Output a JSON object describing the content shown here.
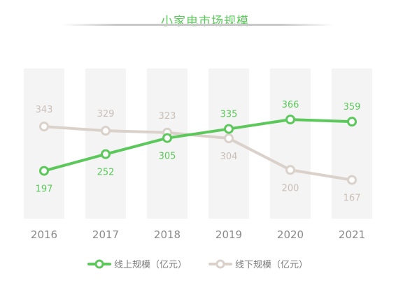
{
  "chart_data": {
    "type": "line",
    "title": "小家电市场规模",
    "categories": [
      "2016",
      "2017",
      "2018",
      "2019",
      "2020",
      "2021"
    ],
    "ylim": [
      150,
      380
    ],
    "series": [
      {
        "name": "线上规模（亿元）",
        "values": [
          197,
          252,
          305,
          335,
          366,
          359
        ],
        "color": "#5cc85c"
      },
      {
        "name": "线下规模（亿元）",
        "values": [
          343,
          329,
          323,
          304,
          200,
          167
        ],
        "color": "#d9d1ca"
      }
    ],
    "legend": "bottom",
    "grid": false
  },
  "colors": {
    "background_columns": "#f4f4f4",
    "tick_text": "#8a8a8a",
    "online_label_text": "#5cc85c",
    "offline_label_text": "#c9bfb6"
  }
}
